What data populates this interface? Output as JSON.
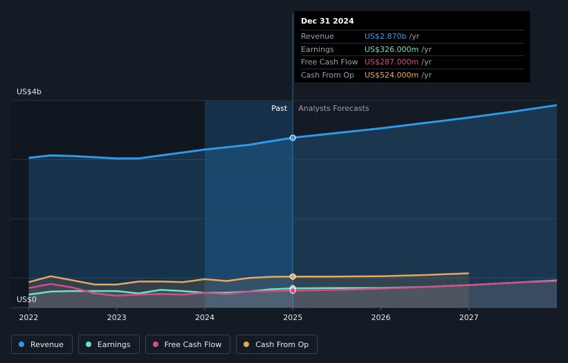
{
  "chart_data": {
    "type": "line",
    "tooltip": {
      "date": "Dec 31 2024",
      "rows": [
        {
          "label": "Revenue",
          "value": "US$2.870b",
          "unit": "/yr",
          "color": "#2d9be8"
        },
        {
          "label": "Earnings",
          "value": "US$326.000m",
          "unit": "/yr",
          "color": "#6ee0c6"
        },
        {
          "label": "Free Cash Flow",
          "value": "US$287.000m",
          "unit": "/yr",
          "color": "#d24f87"
        },
        {
          "label": "Cash From Op",
          "value": "US$524.000m",
          "unit": "/yr",
          "color": "#e8a85c"
        }
      ]
    },
    "y_top_label": "US$4b",
    "y_bottom_label": "US$0",
    "ylim": [
      0,
      3.5
    ],
    "xlim": [
      2021.8,
      2028.0
    ],
    "x_ticks": [
      "2022",
      "2023",
      "2024",
      "2025",
      "2026",
      "2027"
    ],
    "past_label": "Past",
    "forecast_label": "Analysts Forecasts",
    "divider_x": 2025.0,
    "highlight_start_x": 2024.0,
    "series": [
      {
        "name": "Revenue",
        "color": "#2d9be8",
        "x": [
          2022.0,
          2022.25,
          2022.5,
          2022.75,
          2023.0,
          2023.25,
          2023.5,
          2023.75,
          2024.0,
          2024.25,
          2024.5,
          2024.75,
          2025.0,
          2025.5,
          2026.0,
          2026.5,
          2027.0,
          2027.5,
          2028.0
        ],
        "y": [
          2.53,
          2.57,
          2.56,
          2.54,
          2.52,
          2.52,
          2.57,
          2.62,
          2.67,
          2.71,
          2.75,
          2.81,
          2.87,
          2.95,
          3.03,
          3.12,
          3.21,
          3.31,
          3.42
        ]
      },
      {
        "name": "Earnings",
        "color": "#6ee0c6",
        "x": [
          2022.0,
          2022.25,
          2022.5,
          2022.75,
          2023.0,
          2023.25,
          2023.5,
          2023.75,
          2024.0,
          2024.25,
          2024.5,
          2024.75,
          2025.0,
          2025.5,
          2026.0,
          2026.5,
          2027.0,
          2027.5,
          2028.0
        ],
        "y": [
          0.22,
          0.27,
          0.28,
          0.28,
          0.28,
          0.24,
          0.3,
          0.28,
          0.25,
          0.25,
          0.27,
          0.31,
          0.326,
          0.33,
          0.33,
          0.35,
          0.38,
          0.42,
          0.46
        ]
      },
      {
        "name": "Free Cash Flow",
        "color": "#d24f87",
        "x": [
          2022.0,
          2022.25,
          2022.5,
          2022.75,
          2023.0,
          2023.25,
          2023.5,
          2023.75,
          2024.0,
          2024.25,
          2024.5,
          2024.75,
          2025.0,
          2025.5,
          2026.0,
          2026.5,
          2027.0,
          2027.5,
          2028.0
        ],
        "y": [
          0.33,
          0.4,
          0.34,
          0.24,
          0.2,
          0.22,
          0.23,
          0.22,
          0.25,
          0.23,
          0.27,
          0.28,
          0.287,
          0.3,
          0.32,
          0.35,
          0.38,
          0.42,
          0.45
        ]
      },
      {
        "name": "Cash From Op",
        "color": "#e8a85c",
        "x": [
          2022.0,
          2022.25,
          2022.5,
          2022.75,
          2023.0,
          2023.25,
          2023.5,
          2023.75,
          2024.0,
          2024.25,
          2024.5,
          2024.75,
          2025.0,
          2025.5,
          2026.0,
          2026.5,
          2027.0
        ],
        "y": [
          0.43,
          0.53,
          0.46,
          0.39,
          0.39,
          0.44,
          0.44,
          0.43,
          0.48,
          0.45,
          0.5,
          0.52,
          0.524,
          0.524,
          0.53,
          0.55,
          0.58
        ]
      }
    ],
    "legend": [
      {
        "label": "Revenue",
        "color": "#2d9be8"
      },
      {
        "label": "Earnings",
        "color": "#6ee0c6"
      },
      {
        "label": "Free Cash Flow",
        "color": "#d24f87"
      },
      {
        "label": "Cash From Op",
        "color": "#e8a85c"
      }
    ]
  }
}
